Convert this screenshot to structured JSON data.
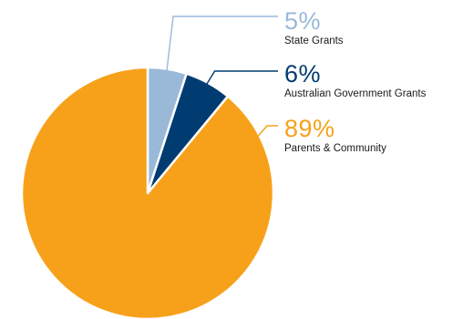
{
  "chart_data": {
    "type": "pie",
    "title": "",
    "legend": "callouts-right",
    "slices": [
      {
        "label": "State Grants",
        "percent_text": "5%",
        "value": 5,
        "color": "#9ab9d9"
      },
      {
        "label": "Australian Government Grants",
        "percent_text": "6%",
        "value": 6,
        "color": "#003b71"
      },
      {
        "label": "Parents & Community",
        "percent_text": "89%",
        "value": 89,
        "color": "#f7a11a"
      }
    ],
    "colors": {
      "leader_line": "#c8c8c8",
      "separator": "#ffffff"
    }
  }
}
